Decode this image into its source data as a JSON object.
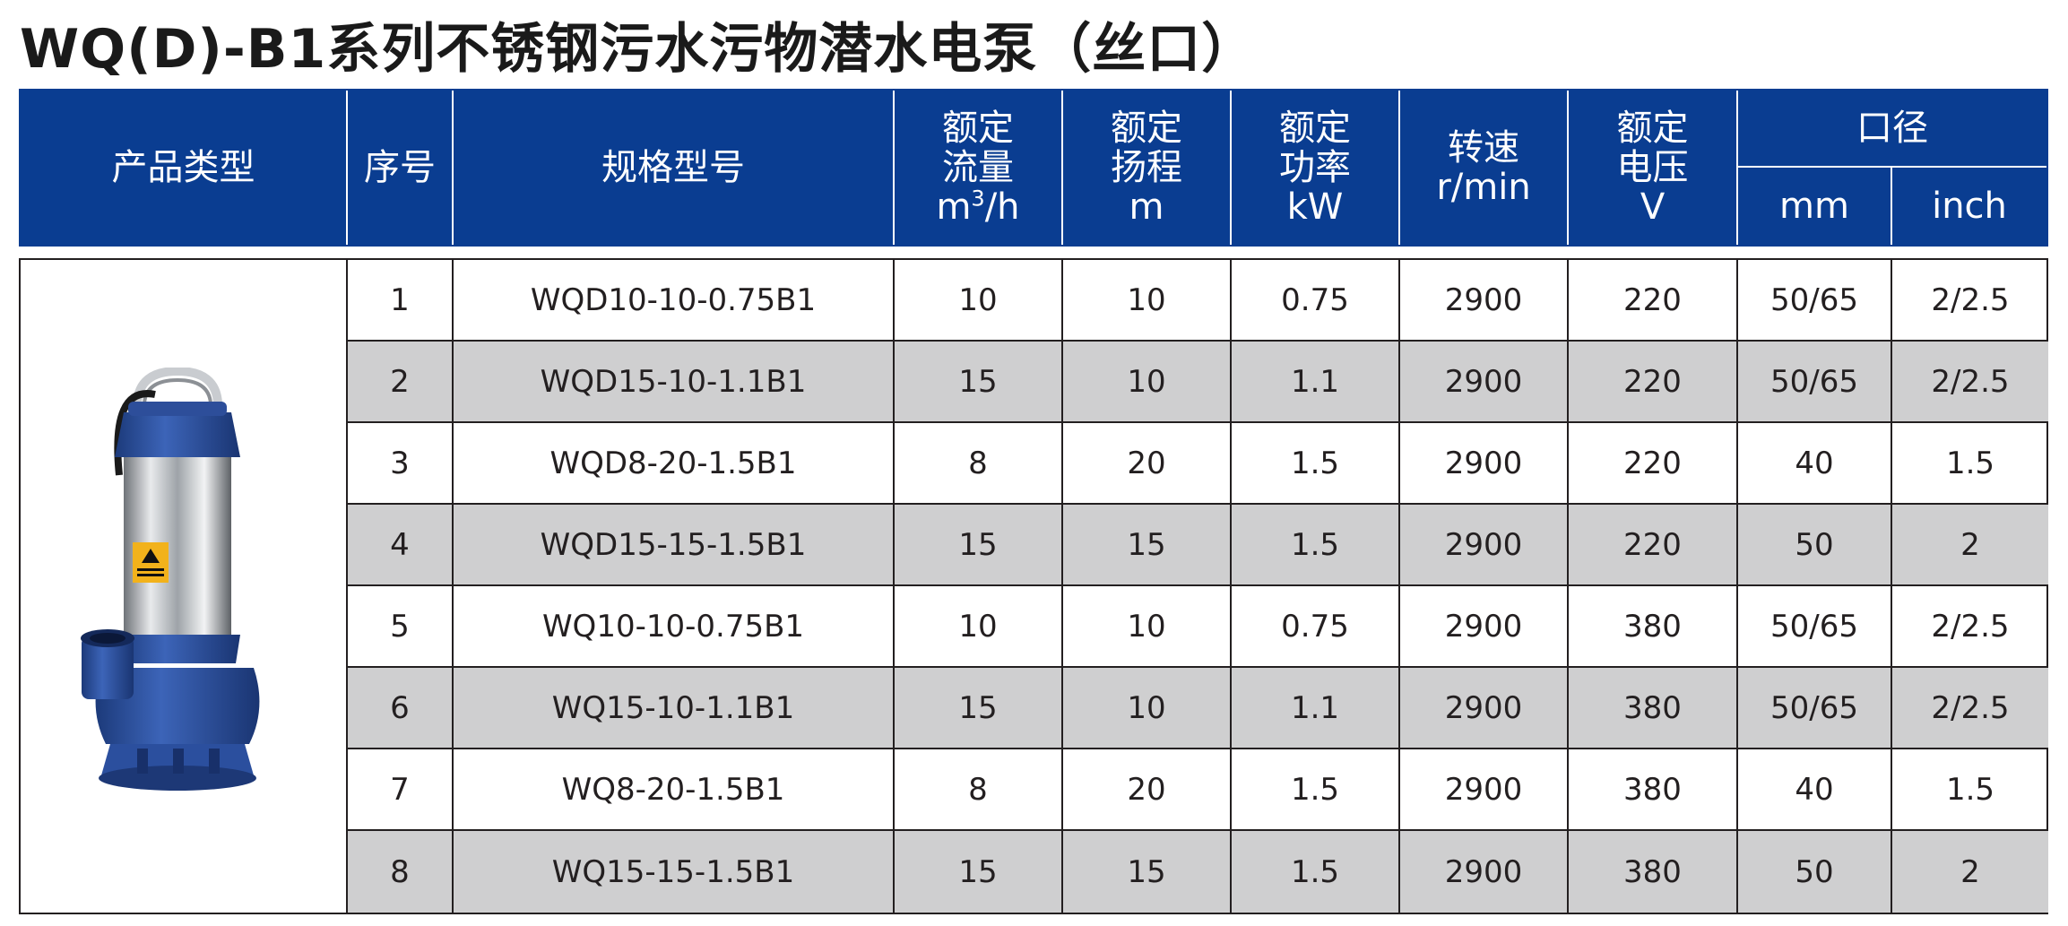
{
  "title": "WQ(D)-B1系列不锈钢污水污物潜水电泵（丝口）",
  "header": {
    "product_type": "产品类型",
    "seq": "序号",
    "model": "规格型号",
    "flow_l1": "额定",
    "flow_l2": "流量",
    "flow_unit_base": "m",
    "flow_unit_sup": "3",
    "flow_unit_tail": "/h",
    "head_l1": "额定",
    "head_l2": "扬程",
    "head_unit": "m",
    "power_l1": "额定",
    "power_l2": "功率",
    "power_unit": "kW",
    "speed_l1": "转速",
    "speed_unit": "r/min",
    "voltage_l1": "额定",
    "voltage_l2": "电压",
    "voltage_unit": "V",
    "caliber": "口径",
    "caliber_mm": "mm",
    "caliber_inch": "inch"
  },
  "rows": [
    {
      "seq": "1",
      "model": "WQD10-10-0.75B1",
      "flow": "10",
      "head": "10",
      "power": "0.75",
      "speed": "2900",
      "voltage": "220",
      "mm": "50/65",
      "inch": "2/2.5"
    },
    {
      "seq": "2",
      "model": "WQD15-10-1.1B1",
      "flow": "15",
      "head": "10",
      "power": "1.1",
      "speed": "2900",
      "voltage": "220",
      "mm": "50/65",
      "inch": "2/2.5"
    },
    {
      "seq": "3",
      "model": "WQD8-20-1.5B1",
      "flow": "8",
      "head": "20",
      "power": "1.5",
      "speed": "2900",
      "voltage": "220",
      "mm": "40",
      "inch": "1.5"
    },
    {
      "seq": "4",
      "model": "WQD15-15-1.5B1",
      "flow": "15",
      "head": "15",
      "power": "1.5",
      "speed": "2900",
      "voltage": "220",
      "mm": "50",
      "inch": "2"
    },
    {
      "seq": "5",
      "model": "WQ10-10-0.75B1",
      "flow": "10",
      "head": "10",
      "power": "0.75",
      "speed": "2900",
      "voltage": "380",
      "mm": "50/65",
      "inch": "2/2.5"
    },
    {
      "seq": "6",
      "model": "WQ15-10-1.1B1",
      "flow": "15",
      "head": "10",
      "power": "1.1",
      "speed": "2900",
      "voltage": "380",
      "mm": "50/65",
      "inch": "2/2.5"
    },
    {
      "seq": "7",
      "model": "WQ8-20-1.5B1",
      "flow": "8",
      "head": "20",
      "power": "1.5",
      "speed": "2900",
      "voltage": "380",
      "mm": "40",
      "inch": "1.5"
    },
    {
      "seq": "8",
      "model": "WQ15-15-1.5B1",
      "flow": "15",
      "head": "15",
      "power": "1.5",
      "speed": "2900",
      "voltage": "380",
      "mm": "50",
      "inch": "2"
    }
  ],
  "colors": {
    "header_bg": "#0a3d91",
    "row_alt_bg": "#cfcfd0",
    "pump_blue": "#2b4f9e"
  },
  "image": {
    "icon": "submersible-pump-image"
  }
}
